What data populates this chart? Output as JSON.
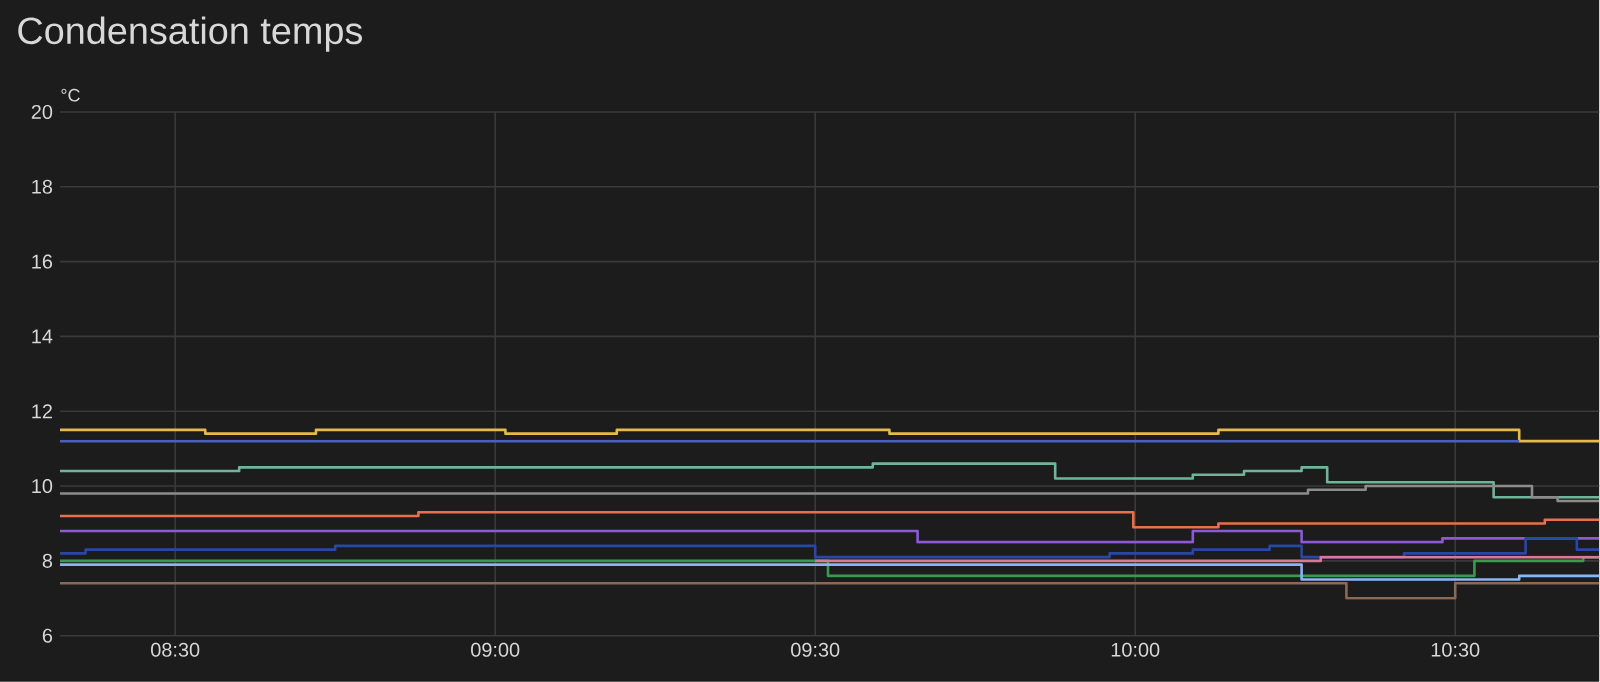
{
  "chart_data": {
    "type": "step",
    "title": "Condensation temps",
    "ylabel": "°C",
    "xlim": [
      8.32,
      10.725
    ],
    "ylim": [
      6,
      20
    ],
    "xticks": [
      {
        "value": 8.5,
        "label": "08:30"
      },
      {
        "value": 9,
        "label": "09:00"
      },
      {
        "value": 9.5,
        "label": "09:30"
      },
      {
        "value": 10,
        "label": "10:00"
      },
      {
        "value": 10.5,
        "label": "10:30"
      }
    ],
    "yticks": [
      6,
      8,
      10,
      12,
      14,
      16,
      18,
      20
    ],
    "grid": true,
    "line_style": "solid",
    "marker": "none",
    "series": [
      {
        "color": "#e5b94a",
        "x": [
          8.32,
          8.547,
          8.72,
          9.016,
          9.19,
          9.616,
          10.13,
          10.6,
          10.725
        ],
        "values": [
          11.5,
          11.4,
          11.5,
          11.4,
          11.5,
          11.4,
          11.5,
          11.2,
          11.2
        ]
      },
      {
        "color": "#4a5fc1",
        "x": [
          8.32,
          10.6
        ],
        "values": [
          11.2,
          11.2
        ]
      },
      {
        "color": "#6fb59a",
        "x": [
          8.32,
          8.6,
          9.59,
          9.875,
          10.09,
          10.17,
          10.26,
          10.3,
          10.56,
          10.725
        ],
        "values": [
          10.4,
          10.5,
          10.6,
          10.2,
          10.3,
          10.4,
          10.5,
          10.1,
          9.7,
          9.7
        ]
      },
      {
        "color": "#8c8c8c",
        "x": [
          8.32,
          10.27,
          10.36,
          10.62,
          10.66,
          10.725
        ],
        "values": [
          9.8,
          9.9,
          10.0,
          9.7,
          9.6,
          9.6
        ]
      },
      {
        "color": "#e8704f",
        "x": [
          8.32,
          8.88,
          9.997,
          10.13,
          10.64,
          10.725
        ],
        "values": [
          9.2,
          9.3,
          8.9,
          9.0,
          9.1,
          9.1
        ]
      },
      {
        "color": "#8c5ad8",
        "x": [
          8.32,
          9.66,
          10.09,
          10.26,
          10.48,
          10.725
        ],
        "values": [
          8.8,
          8.5,
          8.8,
          8.5,
          8.6,
          8.6
        ]
      },
      {
        "color": "#2748a5",
        "x": [
          8.32,
          8.36,
          8.75,
          9.5,
          9.96,
          10.09,
          10.21,
          10.26,
          10.42,
          10.61,
          10.69,
          10.725
        ],
        "values": [
          8.2,
          8.3,
          8.4,
          8.1,
          8.2,
          8.3,
          8.4,
          8.1,
          8.2,
          8.6,
          8.3,
          8.3
        ]
      },
      {
        "color": "#3a9a52",
        "x": [
          8.32,
          9.52,
          10.53,
          10.7,
          10.725
        ],
        "values": [
          8.0,
          7.6,
          8.0,
          8.1,
          8.1
        ]
      },
      {
        "color": "#d97a95",
        "x": [
          9.5,
          10.29,
          10.725
        ],
        "values": [
          8.0,
          8.1,
          8.1
        ]
      },
      {
        "color": "#8ab4f8",
        "x": [
          8.32,
          10.26,
          10.6,
          10.725
        ],
        "values": [
          7.9,
          7.5,
          7.6,
          7.6
        ]
      },
      {
        "color": "#8a6a55",
        "x": [
          8.32,
          10.33,
          10.5,
          10.725
        ],
        "values": [
          7.4,
          7.0,
          7.4,
          7.4
        ]
      }
    ]
  }
}
